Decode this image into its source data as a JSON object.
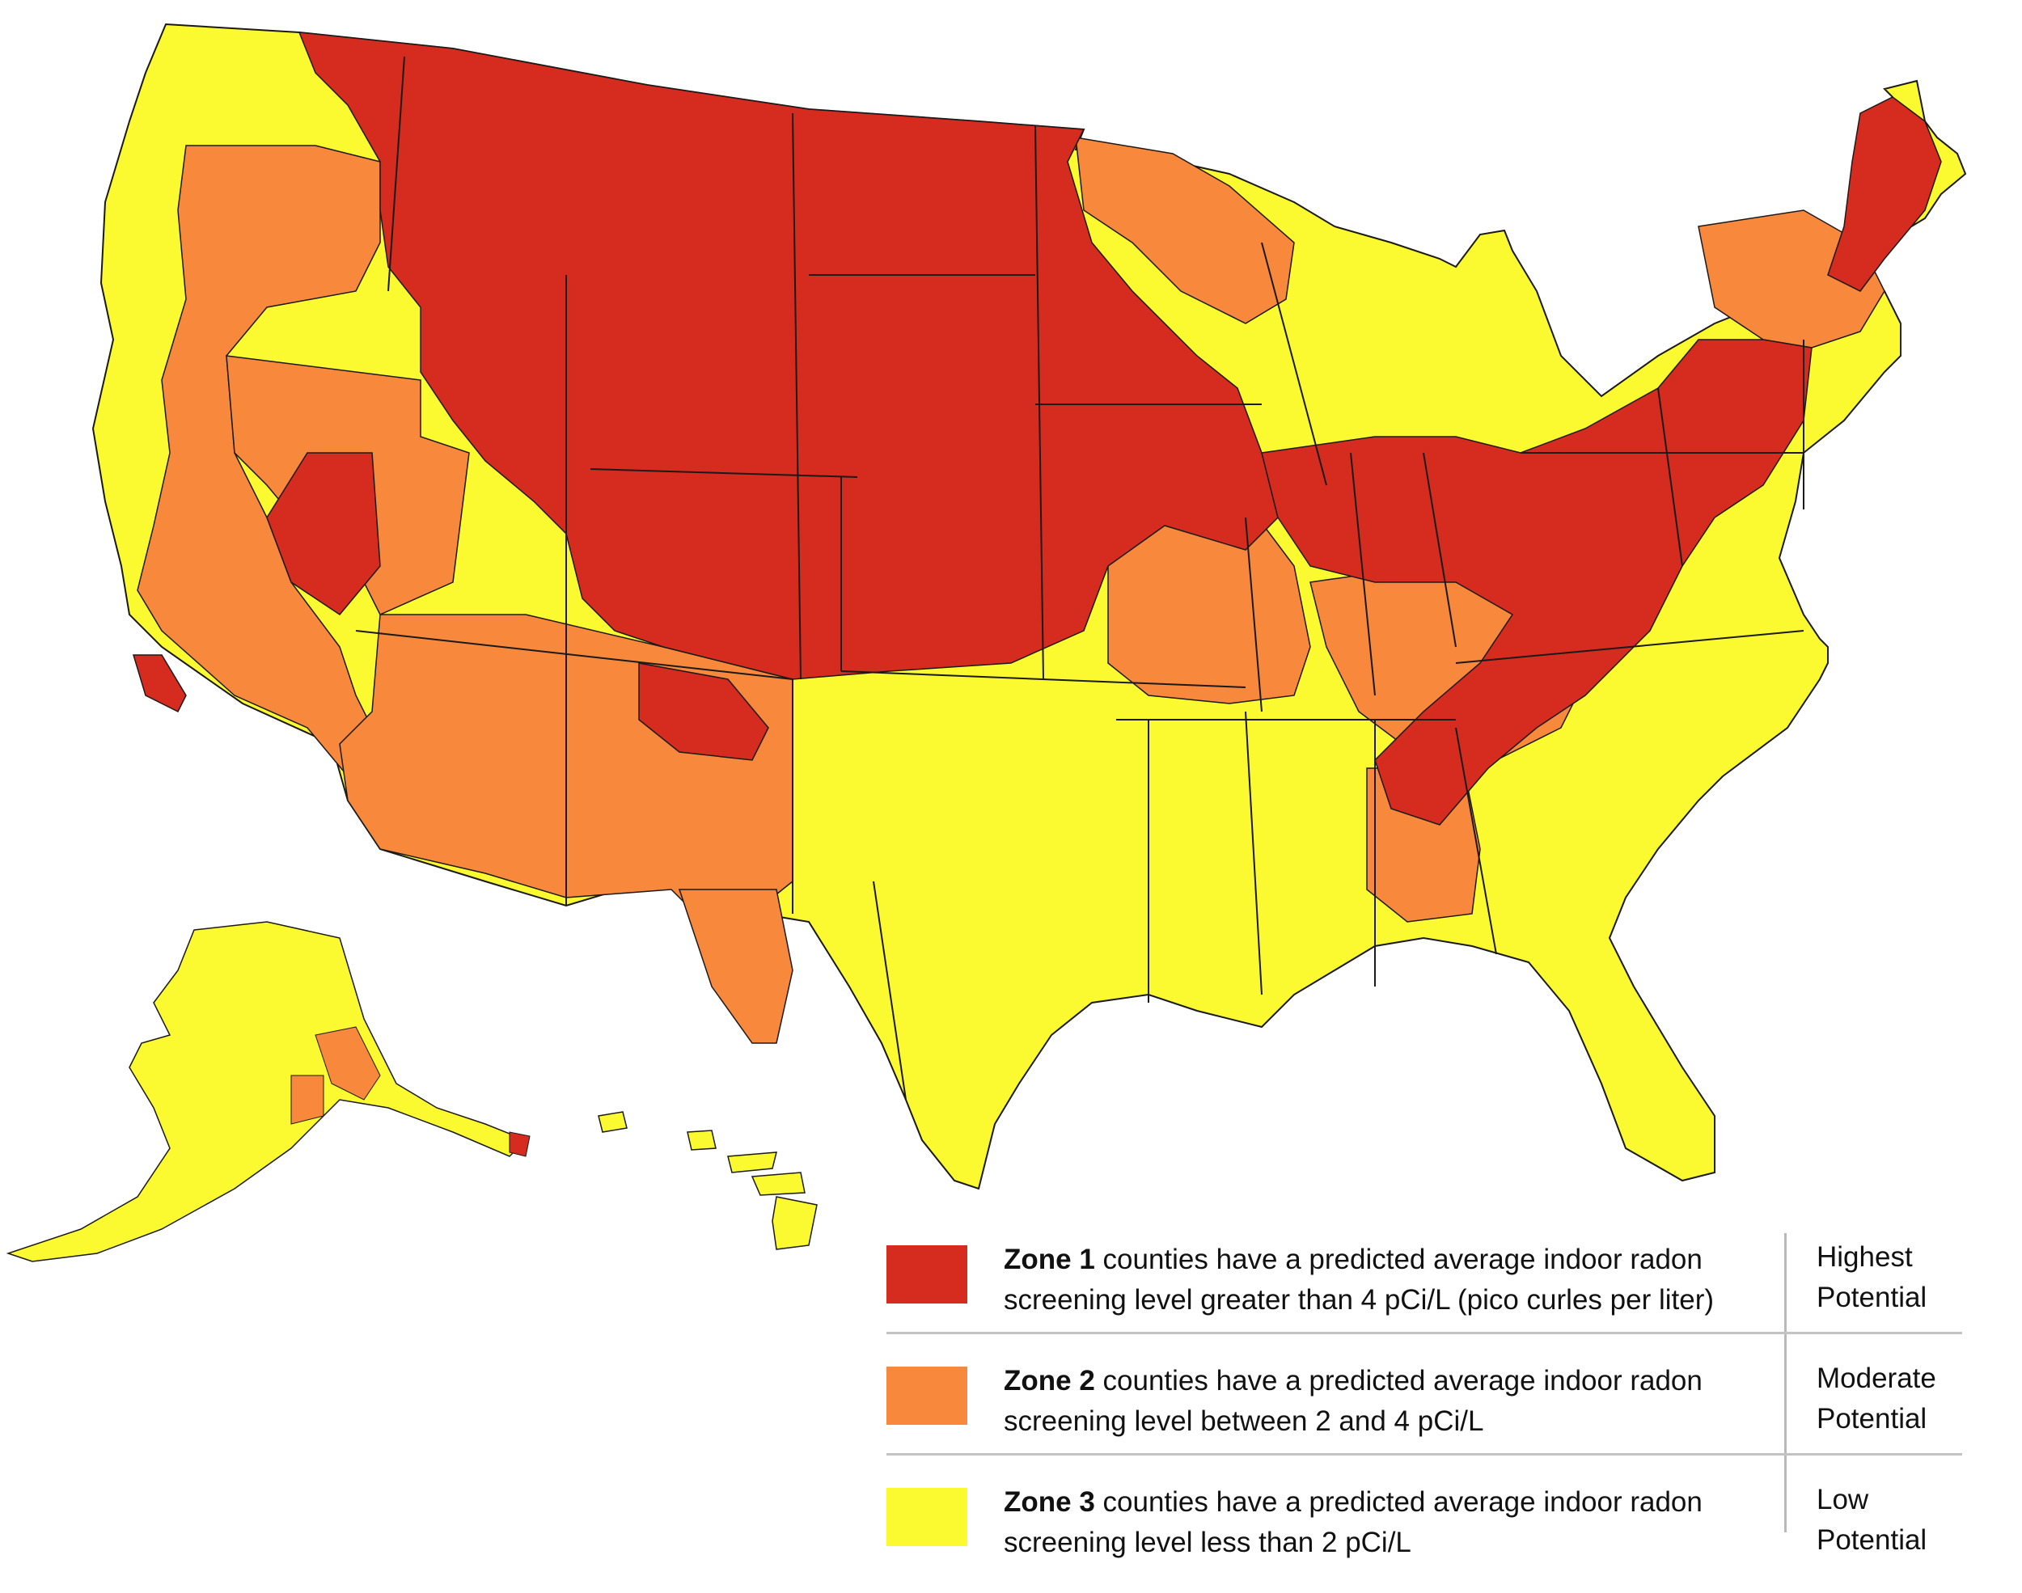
{
  "colors": {
    "zone1": "#d62b1f",
    "zone2": "#f7883c",
    "zone3": "#fbfa31",
    "borders": "#1a1a1a"
  },
  "map": {
    "regions": [
      {
        "name": "Alaska",
        "zone": 3
      },
      {
        "name": "Hawaii",
        "zone": 3
      }
    ]
  },
  "legend": {
    "zone1": {
      "bold": "Zone 1",
      "rest": " counties have a predicted average indoor radon screening level greater than 4 pCi/L (pico curles per liter)",
      "potential_line1": "Highest",
      "potential_line2": "Potential"
    },
    "zone2": {
      "bold": "Zone 2",
      "rest": " counties have a predicted average indoor radon screening level between 2 and 4 pCi/L",
      "potential_line1": "Moderate",
      "potential_line2": "Potential"
    },
    "zone3": {
      "bold": "Zone 3",
      "rest": " counties have a predicted average indoor radon screening level less than 2 pCi/L",
      "potential_line1": "Low",
      "potential_line2": "Potential"
    }
  }
}
